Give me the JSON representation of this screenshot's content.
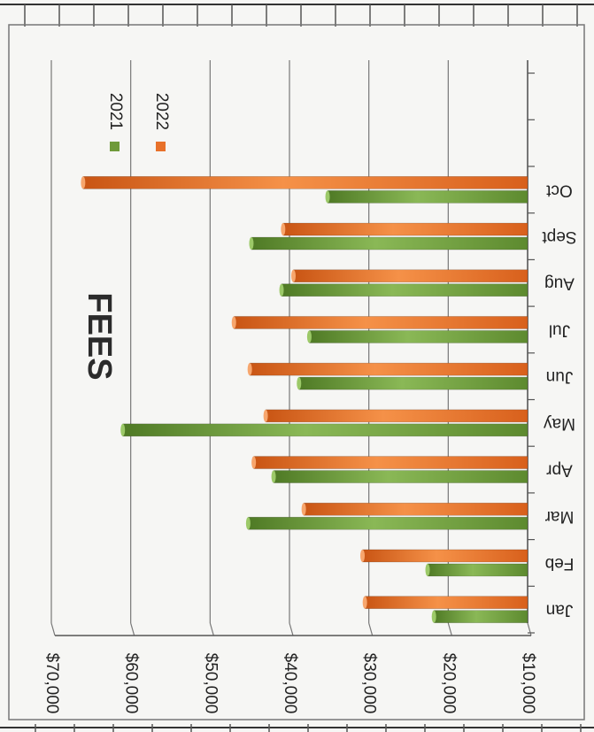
{
  "chart_data": {
    "type": "bar",
    "orientation": "rotated-90-clockwise",
    "title": "FEES",
    "categories": [
      "Jan",
      "Feb",
      "Mar",
      "Apr",
      "May",
      "Jun",
      "Jul",
      "Aug",
      "Sept",
      "Oct"
    ],
    "series": [
      {
        "name": "2021",
        "color": "#6f9a3a",
        "values": [
          21800,
          22600,
          45200,
          42000,
          61000,
          38800,
          37500,
          41000,
          44800,
          35200
        ]
      },
      {
        "name": "2022",
        "color": "#e8712a",
        "values": [
          30500,
          30800,
          38200,
          44500,
          43000,
          45000,
          47000,
          39500,
          40800,
          66000
        ]
      }
    ],
    "y_ticks": [
      "$10,000",
      "$20,000",
      "$30,000",
      "$40,000",
      "$50,000",
      "$60,000",
      "$70,000"
    ],
    "ylim": [
      10000,
      70000
    ],
    "grid": true,
    "legend_position": "top-right",
    "xlabel": "",
    "ylabel": ""
  }
}
